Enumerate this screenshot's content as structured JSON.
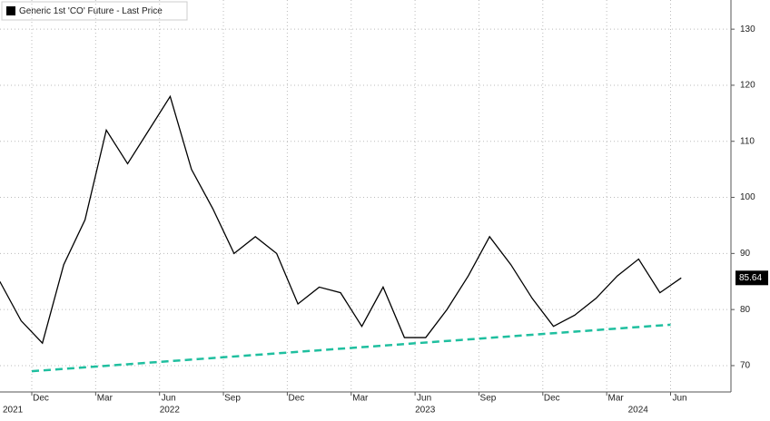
{
  "chart_data": {
    "type": "line",
    "legend": "Generic 1st 'CO' Future - Last Price",
    "x": [
      "2021-10",
      "2021-11",
      "2021-12",
      "2022-01",
      "2022-02",
      "2022-03",
      "2022-04",
      "2022-05",
      "2022-06",
      "2022-07",
      "2022-08",
      "2022-09",
      "2022-10",
      "2022-11",
      "2022-12",
      "2023-01",
      "2023-02",
      "2023-03",
      "2023-04",
      "2023-05",
      "2023-06",
      "2023-07",
      "2023-08",
      "2023-09",
      "2023-10",
      "2023-11",
      "2023-12",
      "2024-01",
      "2024-02",
      "2024-03",
      "2024-04",
      "2024-05",
      "2024-06"
    ],
    "series": [
      {
        "name": "Generic 1st 'CO' Future - Last Price",
        "color": "#000000",
        "values": [
          85,
          78,
          74,
          88,
          96,
          112,
          106,
          112,
          118,
          105,
          98,
          90,
          93,
          90,
          81,
          84,
          83,
          77,
          84,
          75,
          75,
          80,
          86,
          93,
          88,
          82,
          77,
          79,
          82,
          86,
          89,
          83,
          85.64
        ]
      }
    ],
    "trendline": {
      "x": [
        "2021-12",
        "2024-06"
      ],
      "values": [
        69,
        77.3
      ],
      "color": "#1fbf9f"
    },
    "ylim": [
      65.3,
      135.2
    ],
    "yticks": [
      70,
      80,
      90,
      100,
      110,
      120,
      130
    ],
    "xticks": [
      {
        "value": "2021-12",
        "label": "Dec"
      },
      {
        "value": "2022-03",
        "label": "Mar"
      },
      {
        "value": "2022-06",
        "label": "Jun"
      },
      {
        "value": "2022-09",
        "label": "Sep"
      },
      {
        "value": "2022-12",
        "label": "Dec"
      },
      {
        "value": "2023-03",
        "label": "Mar"
      },
      {
        "value": "2023-06",
        "label": "Jun"
      },
      {
        "value": "2023-09",
        "label": "Sep"
      },
      {
        "value": "2023-12",
        "label": "Dec"
      },
      {
        "value": "2024-03",
        "label": "Mar"
      },
      {
        "value": "2024-06",
        "label": "Jun"
      }
    ],
    "year_ticks": [
      {
        "value": "2021-10",
        "label": "2021"
      },
      {
        "value": "2022-06",
        "label": "2022"
      },
      {
        "value": "2023-06",
        "label": "2023"
      },
      {
        "value": "2024-04",
        "label": "2024"
      }
    ],
    "grid": true
  }
}
